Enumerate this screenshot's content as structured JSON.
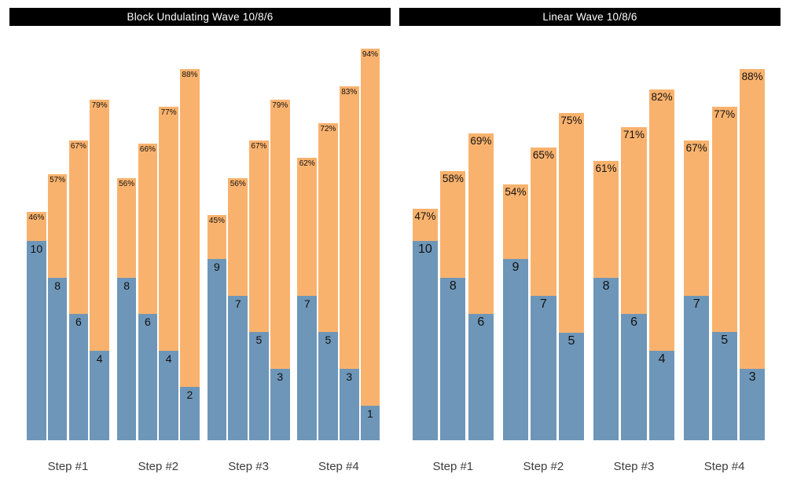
{
  "colors": {
    "orange": "#f9b26d",
    "blue": "#6e96b8",
    "title_bg": "#000000",
    "title_text": "#ffffff",
    "value_text": "#111111",
    "category_text": "#3d3d3d",
    "background": "#ffffff"
  },
  "chart_data": [
    {
      "type": "bar",
      "title": "Block Undulating Wave 10/8/6",
      "categories": [
        "Step #1",
        "Step #2",
        "Step #3",
        "Step #4"
      ],
      "encoding": "Each bar: total (orange) height encodes intensity %; lower blue overlay height encodes reps. Rep count printed at top of blue segment, percent printed at top of orange bar.",
      "axes_visible": false,
      "legend": "none",
      "series": [
        {
          "name": "reps",
          "color_key": "blue",
          "values": [
            [
              10,
              8,
              6,
              4
            ],
            [
              8,
              6,
              4,
              2
            ],
            [
              9,
              7,
              5,
              3
            ],
            [
              7,
              5,
              3,
              1
            ]
          ]
        },
        {
          "name": "intensity_pct",
          "color_key": "orange",
          "unit": "%",
          "values": [
            [
              46,
              57,
              67,
              79
            ],
            [
              56,
              66,
              77,
              88
            ],
            [
              45,
              56,
              67,
              79
            ],
            [
              62,
              72,
              83,
              94
            ]
          ]
        }
      ]
    },
    {
      "type": "bar",
      "title": "Linear Wave 10/8/6",
      "categories": [
        "Step #1",
        "Step #2",
        "Step #3",
        "Step #4"
      ],
      "encoding": "Each bar: total (orange) height encodes intensity %; lower blue overlay height encodes reps. Rep count printed at top of blue segment, percent printed at top of orange bar.",
      "axes_visible": false,
      "legend": "none",
      "series": [
        {
          "name": "reps",
          "color_key": "blue",
          "values": [
            [
              10,
              8,
              6
            ],
            [
              9,
              7,
              5
            ],
            [
              8,
              6,
              4
            ],
            [
              7,
              5,
              3
            ]
          ]
        },
        {
          "name": "intensity_pct",
          "color_key": "orange",
          "unit": "%",
          "values": [
            [
              47,
              58,
              69
            ],
            [
              54,
              65,
              75
            ],
            [
              61,
              71,
              82
            ],
            [
              67,
              77,
              88
            ]
          ]
        }
      ]
    }
  ]
}
